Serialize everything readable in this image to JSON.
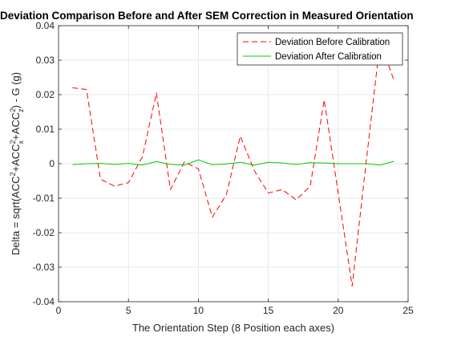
{
  "chart_data": {
    "type": "line",
    "title": "Deviation Comparison Before and After SEM Correction in Measured Orientation",
    "xlabel": "The Orientation Step (8 Position each axes)",
    "ylabel": {
      "prefix": "Delta = sqrt(ACC",
      "sq1": "2",
      "mid1": "+ACC",
      "sq2": "2",
      "sub2": "x",
      "mid2": "+ACC",
      "sq3": "2",
      "sub3": "z",
      "suffix": ") - G (g)"
    },
    "xlim": [
      0,
      25
    ],
    "ylim": [
      -0.04,
      0.04
    ],
    "xticks": [
      0,
      5,
      10,
      15,
      20,
      25
    ],
    "xtick_labels": [
      "0",
      "5",
      "10",
      "15",
      "20",
      "25"
    ],
    "yticks": [
      -0.04,
      -0.03,
      -0.02,
      -0.01,
      0,
      0.01,
      0.02,
      0.03,
      0.04
    ],
    "ytick_labels": [
      "-0.04",
      "-0.03",
      "-0.02",
      "-0.01",
      "0",
      "0.01",
      "0.02",
      "0.03",
      "0.04"
    ],
    "grid": true,
    "legend_position": "top-right",
    "x": [
      1,
      2,
      3,
      4,
      5,
      6,
      7,
      8,
      9,
      10,
      11,
      12,
      13,
      14,
      15,
      16,
      17,
      18,
      19,
      20,
      21,
      22,
      23,
      24
    ],
    "series": [
      {
        "name": "Deviation Before Calibration",
        "color": "#ff0000",
        "style": "dashed",
        "values": [
          0.022,
          0.0215,
          -0.0045,
          -0.0065,
          -0.0055,
          0.002,
          0.0205,
          -0.0075,
          0.0005,
          -0.0015,
          -0.0155,
          -0.009,
          0.008,
          -0.002,
          -0.0085,
          -0.0075,
          -0.0105,
          -0.0065,
          0.0185,
          -0.0085,
          -0.0355,
          0.0005,
          0.0355,
          0.024
        ]
      },
      {
        "name": "Deviation After Calibration",
        "color": "#00cc00",
        "style": "solid",
        "values": [
          -0.0003,
          0.0,
          0.0001,
          -0.0002,
          0.0001,
          -0.0004,
          0.0006,
          -0.0002,
          -0.0004,
          0.0011,
          -0.0003,
          -0.0001,
          0.0004,
          -0.0004,
          0.0004,
          0.0002,
          -0.0002,
          0.0003,
          0.0002,
          0.0,
          0.0,
          0.0,
          -0.0004,
          0.0007
        ]
      }
    ]
  }
}
